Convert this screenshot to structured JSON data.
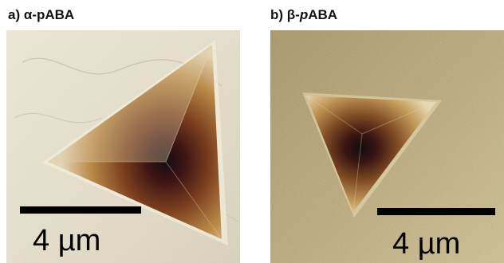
{
  "panels": [
    {
      "letter": "a)",
      "name": "α-pABA",
      "name_parts": [
        "α-",
        "pABA"
      ],
      "scale_bar": "4 µm",
      "surface_color": "#e9e3d2"
    },
    {
      "letter": "b)",
      "name": "β-pABA",
      "name_parts": [
        "β-",
        "p",
        "ABA"
      ],
      "scale_bar": "4 µm",
      "surface_color": "#b8a575"
    }
  ]
}
